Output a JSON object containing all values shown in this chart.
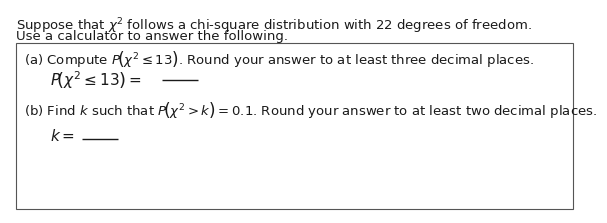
{
  "title_line1": "Suppose that $\\chi^2$ follows a chi-square distribution with 22 degrees of freedom.",
  "title_line2": "Use a calculator to answer the following.",
  "part_a_label": "(a) Compute $P\\!\\left(\\chi^2 \\leq 13\\right)$. Round your answer to at least three decimal places.",
  "part_a_eq": "$P\\!\\left(\\chi^2 \\leq 13\\right) =$",
  "part_b_label": "(b) Find $k$ such that $P\\!\\left(\\chi^2 > k\\right) = 0.1$. Round your answer to at least two decimal places.",
  "part_b_eq": "$k =$",
  "bg_color": "#ffffff",
  "text_color": "#1a1a1a",
  "box_color": "#555555",
  "font_size": 9.5,
  "font_size_eq": 11.0
}
